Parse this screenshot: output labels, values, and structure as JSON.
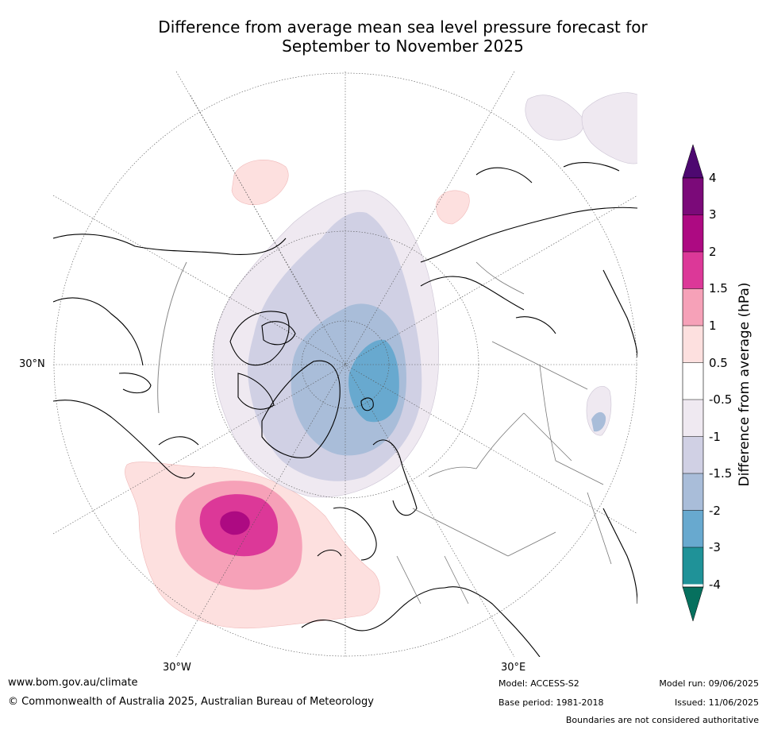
{
  "title_line1": "Difference from average mean sea level pressure forecast for",
  "title_line2": "September to November 2025",
  "map": {
    "lat_label": "30°N",
    "lon_labels": {
      "west": "30°W",
      "east": "30°E"
    }
  },
  "colorbar": {
    "title": "Difference from average (hPa)",
    "levels": [
      "4",
      "3",
      "2",
      "1.5",
      "1",
      "0.5",
      "-0.5",
      "-1",
      "-1.5",
      "-2",
      "-3",
      "-4"
    ],
    "colors": {
      "over": "#4d0870",
      "c3_4": "#7b0a79",
      "c2_3": "#ad0a82",
      "c1_5_2": "#dc3898",
      "c1_1_5": "#f6a1b8",
      "c0_5_1": "#fde0df",
      "c_n0_5_0_5": "#ffffff",
      "c_n1_n0_5": "#efe9f1",
      "c_n1_5_n1": "#d0d0e4",
      "c_n2_n1_5": "#a9bdd9",
      "c_n3_n2": "#68a9cf",
      "c_n4_n3": "#1f9298",
      "under": "#06705e"
    }
  },
  "footer": {
    "url": "www.bom.gov.au/climate",
    "copyright": "© Commonwealth of Australia 2025, Australian Bureau of Meteorology",
    "model": "Model: ACCESS-S2",
    "base_period": "Base period: 1981-2018",
    "model_run": "Model run: 09/06/2025",
    "issued": "Issued: 11/06/2025",
    "disclaimer": "Boundaries are not considered authoritative"
  }
}
